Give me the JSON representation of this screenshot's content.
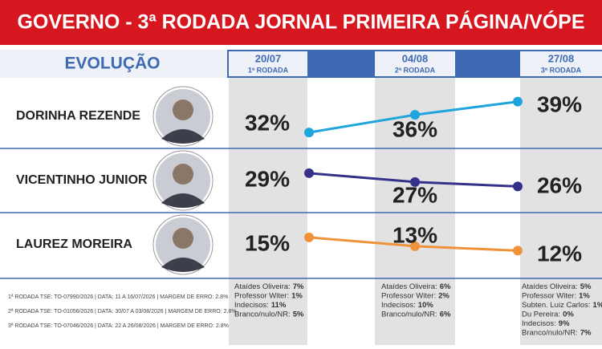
{
  "chart_data": {
    "type": "line",
    "title": "GOVERNO - 3ª RODADA JORNAL PRIMEIRA PÁGINA/VÓPE",
    "subtitle": "EVOLUÇÃO",
    "categories": [
      "20/07",
      "04/08",
      "27/08"
    ],
    "rounds": [
      "1ª RODADA",
      "2ª RODADA",
      "3ª RODADA"
    ],
    "series": [
      {
        "name": "DORINHA REZENDE",
        "color": "#1ea5dc",
        "values": [
          32,
          36,
          39
        ],
        "value_labels": [
          "32%",
          "36%",
          "39%"
        ]
      },
      {
        "name": "VICENTINHO JUNIOR",
        "color": "#35318a",
        "values": [
          29,
          27,
          26
        ],
        "value_labels": [
          "29%",
          "27%",
          "26%"
        ]
      },
      {
        "name": "LAUREZ MOREIRA",
        "color": "#f0923a",
        "values": [
          15,
          13,
          12
        ],
        "value_labels": [
          "15%",
          "13%",
          "12%"
        ]
      }
    ],
    "others": [
      [
        {
          "name": "Ataídes Oliveira:",
          "value": "7%"
        },
        {
          "name": "Professor Witer:",
          "value": "1%"
        },
        {
          "name": "Indecisos:",
          "value": "11%"
        },
        {
          "name": "Branco/nulo/NR:",
          "value": "5%"
        }
      ],
      [
        {
          "name": "Ataídes Oliveira:",
          "value": "6%"
        },
        {
          "name": "Professor Witer:",
          "value": "2%"
        },
        {
          "name": "Indecisos:",
          "value": "10%"
        },
        {
          "name": "Branco/nulo/NR:",
          "value": "6%"
        }
      ],
      [
        {
          "name": "Ataídes Oliveira:",
          "value": "5%"
        },
        {
          "name": "Professor Witer:",
          "value": "1%"
        },
        {
          "name": "Subten. Luiz Carlos:",
          "value": "1%"
        },
        {
          "name": "Du Pereira:",
          "value": "0%"
        },
        {
          "name": "Indecisos:",
          "value": "9%"
        },
        {
          "name": "Branco/nulo/NR:",
          "value": "7%"
        }
      ]
    ],
    "footnotes": [
      "1ª RODADA TSE: TO-07990/2026 | DATA: 11 A 16/07/2026 | MARGEM DE ERRO: 2.8%",
      "2ª RODADA TSE: TO-01056/2026 | DATA: 30/07 A 03/08/2026 | MARGEM DE ERRO: 2.8%",
      "3ª RODADA TSE: TO-07046/2026 | DATA: 22 A 26/08/2026 | MARGEM DE ERRO: 2.8%"
    ]
  }
}
